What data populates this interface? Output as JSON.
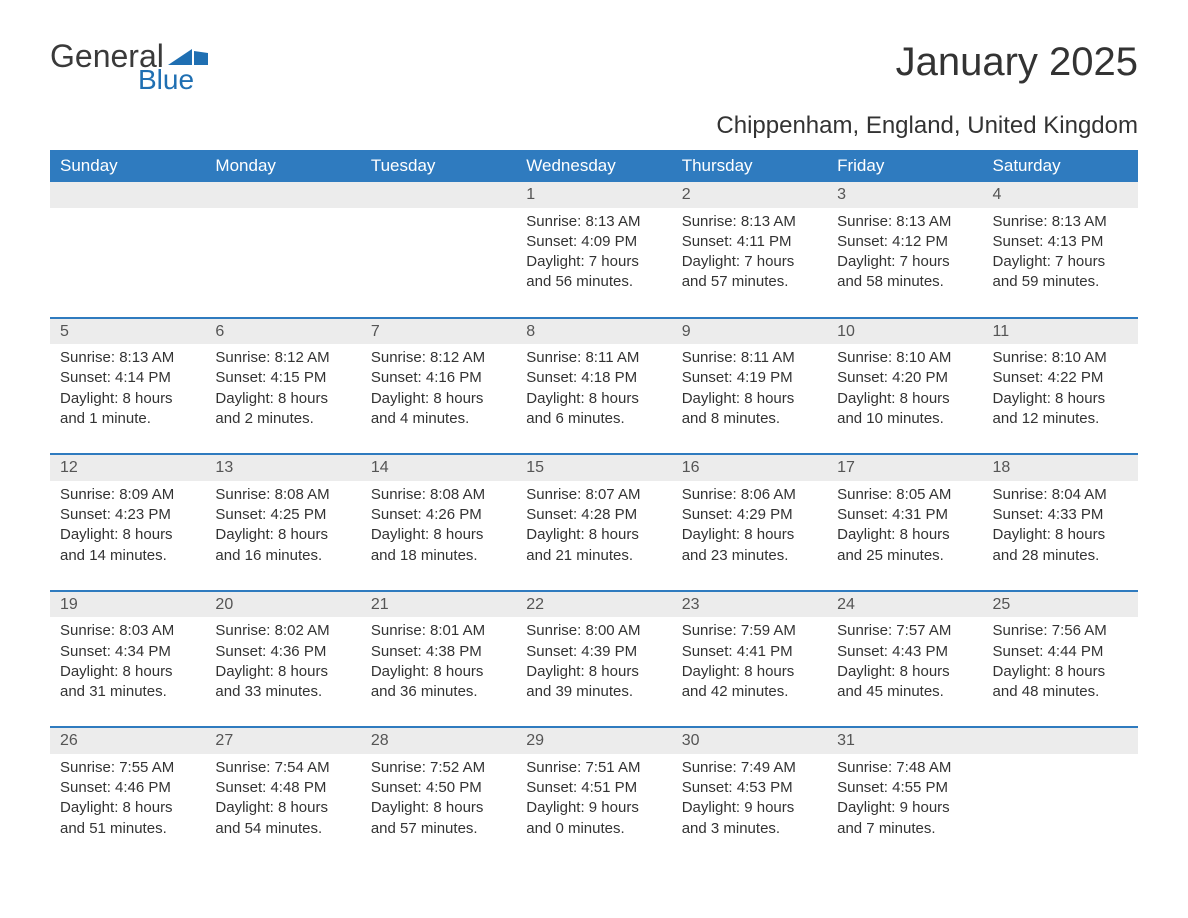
{
  "logo": {
    "word1": "General",
    "word2": "Blue",
    "flag_color": "#1f6fb2",
    "text_gray": "#3a3a3a"
  },
  "title": "January 2025",
  "location": "Chippenham, England, United Kingdom",
  "colors": {
    "header_bg": "#2f7bbf",
    "header_text": "#ffffff",
    "daynum_bg": "#ececec",
    "row_border": "#2f7bbf",
    "body_text": "#333333"
  },
  "day_headers": [
    "Sunday",
    "Monday",
    "Tuesday",
    "Wednesday",
    "Thursday",
    "Friday",
    "Saturday"
  ],
  "weeks": [
    [
      null,
      null,
      null,
      {
        "n": "1",
        "sr": "Sunrise: 8:13 AM",
        "ss": "Sunset: 4:09 PM",
        "d1": "Daylight: 7 hours",
        "d2": "and 56 minutes."
      },
      {
        "n": "2",
        "sr": "Sunrise: 8:13 AM",
        "ss": "Sunset: 4:11 PM",
        "d1": "Daylight: 7 hours",
        "d2": "and 57 minutes."
      },
      {
        "n": "3",
        "sr": "Sunrise: 8:13 AM",
        "ss": "Sunset: 4:12 PM",
        "d1": "Daylight: 7 hours",
        "d2": "and 58 minutes."
      },
      {
        "n": "4",
        "sr": "Sunrise: 8:13 AM",
        "ss": "Sunset: 4:13 PM",
        "d1": "Daylight: 7 hours",
        "d2": "and 59 minutes."
      }
    ],
    [
      {
        "n": "5",
        "sr": "Sunrise: 8:13 AM",
        "ss": "Sunset: 4:14 PM",
        "d1": "Daylight: 8 hours",
        "d2": "and 1 minute."
      },
      {
        "n": "6",
        "sr": "Sunrise: 8:12 AM",
        "ss": "Sunset: 4:15 PM",
        "d1": "Daylight: 8 hours",
        "d2": "and 2 minutes."
      },
      {
        "n": "7",
        "sr": "Sunrise: 8:12 AM",
        "ss": "Sunset: 4:16 PM",
        "d1": "Daylight: 8 hours",
        "d2": "and 4 minutes."
      },
      {
        "n": "8",
        "sr": "Sunrise: 8:11 AM",
        "ss": "Sunset: 4:18 PM",
        "d1": "Daylight: 8 hours",
        "d2": "and 6 minutes."
      },
      {
        "n": "9",
        "sr": "Sunrise: 8:11 AM",
        "ss": "Sunset: 4:19 PM",
        "d1": "Daylight: 8 hours",
        "d2": "and 8 minutes."
      },
      {
        "n": "10",
        "sr": "Sunrise: 8:10 AM",
        "ss": "Sunset: 4:20 PM",
        "d1": "Daylight: 8 hours",
        "d2": "and 10 minutes."
      },
      {
        "n": "11",
        "sr": "Sunrise: 8:10 AM",
        "ss": "Sunset: 4:22 PM",
        "d1": "Daylight: 8 hours",
        "d2": "and 12 minutes."
      }
    ],
    [
      {
        "n": "12",
        "sr": "Sunrise: 8:09 AM",
        "ss": "Sunset: 4:23 PM",
        "d1": "Daylight: 8 hours",
        "d2": "and 14 minutes."
      },
      {
        "n": "13",
        "sr": "Sunrise: 8:08 AM",
        "ss": "Sunset: 4:25 PM",
        "d1": "Daylight: 8 hours",
        "d2": "and 16 minutes."
      },
      {
        "n": "14",
        "sr": "Sunrise: 8:08 AM",
        "ss": "Sunset: 4:26 PM",
        "d1": "Daylight: 8 hours",
        "d2": "and 18 minutes."
      },
      {
        "n": "15",
        "sr": "Sunrise: 8:07 AM",
        "ss": "Sunset: 4:28 PM",
        "d1": "Daylight: 8 hours",
        "d2": "and 21 minutes."
      },
      {
        "n": "16",
        "sr": "Sunrise: 8:06 AM",
        "ss": "Sunset: 4:29 PM",
        "d1": "Daylight: 8 hours",
        "d2": "and 23 minutes."
      },
      {
        "n": "17",
        "sr": "Sunrise: 8:05 AM",
        "ss": "Sunset: 4:31 PM",
        "d1": "Daylight: 8 hours",
        "d2": "and 25 minutes."
      },
      {
        "n": "18",
        "sr": "Sunrise: 8:04 AM",
        "ss": "Sunset: 4:33 PM",
        "d1": "Daylight: 8 hours",
        "d2": "and 28 minutes."
      }
    ],
    [
      {
        "n": "19",
        "sr": "Sunrise: 8:03 AM",
        "ss": "Sunset: 4:34 PM",
        "d1": "Daylight: 8 hours",
        "d2": "and 31 minutes."
      },
      {
        "n": "20",
        "sr": "Sunrise: 8:02 AM",
        "ss": "Sunset: 4:36 PM",
        "d1": "Daylight: 8 hours",
        "d2": "and 33 minutes."
      },
      {
        "n": "21",
        "sr": "Sunrise: 8:01 AM",
        "ss": "Sunset: 4:38 PM",
        "d1": "Daylight: 8 hours",
        "d2": "and 36 minutes."
      },
      {
        "n": "22",
        "sr": "Sunrise: 8:00 AM",
        "ss": "Sunset: 4:39 PM",
        "d1": "Daylight: 8 hours",
        "d2": "and 39 minutes."
      },
      {
        "n": "23",
        "sr": "Sunrise: 7:59 AM",
        "ss": "Sunset: 4:41 PM",
        "d1": "Daylight: 8 hours",
        "d2": "and 42 minutes."
      },
      {
        "n": "24",
        "sr": "Sunrise: 7:57 AM",
        "ss": "Sunset: 4:43 PM",
        "d1": "Daylight: 8 hours",
        "d2": "and 45 minutes."
      },
      {
        "n": "25",
        "sr": "Sunrise: 7:56 AM",
        "ss": "Sunset: 4:44 PM",
        "d1": "Daylight: 8 hours",
        "d2": "and 48 minutes."
      }
    ],
    [
      {
        "n": "26",
        "sr": "Sunrise: 7:55 AM",
        "ss": "Sunset: 4:46 PM",
        "d1": "Daylight: 8 hours",
        "d2": "and 51 minutes."
      },
      {
        "n": "27",
        "sr": "Sunrise: 7:54 AM",
        "ss": "Sunset: 4:48 PM",
        "d1": "Daylight: 8 hours",
        "d2": "and 54 minutes."
      },
      {
        "n": "28",
        "sr": "Sunrise: 7:52 AM",
        "ss": "Sunset: 4:50 PM",
        "d1": "Daylight: 8 hours",
        "d2": "and 57 minutes."
      },
      {
        "n": "29",
        "sr": "Sunrise: 7:51 AM",
        "ss": "Sunset: 4:51 PM",
        "d1": "Daylight: 9 hours",
        "d2": "and 0 minutes."
      },
      {
        "n": "30",
        "sr": "Sunrise: 7:49 AM",
        "ss": "Sunset: 4:53 PM",
        "d1": "Daylight: 9 hours",
        "d2": "and 3 minutes."
      },
      {
        "n": "31",
        "sr": "Sunrise: 7:48 AM",
        "ss": "Sunset: 4:55 PM",
        "d1": "Daylight: 9 hours",
        "d2": "and 7 minutes."
      },
      null
    ]
  ]
}
